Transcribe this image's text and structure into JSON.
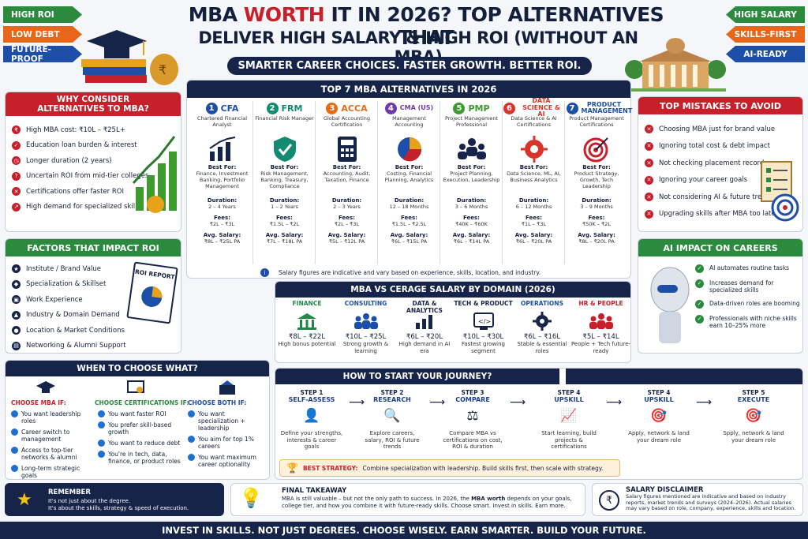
{
  "tags_left": [
    "HIGH ROI",
    "LOW DEBT",
    "FUTURE-PROOF"
  ],
  "tags_right": [
    "HIGH SALARY",
    "SKILLS-FIRST",
    "AI-READY"
  ],
  "title": {
    "part1": "MBA ",
    "highlight": "WORTH",
    "part2": " IT IN 2026? TOP ALTERNATIVES THAT",
    "line2": "DELIVER HIGH SALARY & HIGH ROI (WITHOUT AN MBA)"
  },
  "tagline": "SMARTER CAREER CHOICES. FASTER GROWTH. BETTER ROI.",
  "why": {
    "title": "WHY CONSIDER ALTERNATIVES TO MBA?",
    "items": [
      "High MBA cost: ₹10L – ₹25L+",
      "Education loan burden & interest",
      "Longer duration (2 years)",
      "Uncertain ROI from mid-tier colleges",
      "Certifications offer faster ROI",
      "High demand for specialized skills"
    ]
  },
  "factors": {
    "title": "FACTORS THAT IMPACT ROI",
    "items": [
      "Institute / Brand Value",
      "Specialization & Skillset",
      "Work Experience",
      "Industry & Domain Demand",
      "Location & Market Conditions",
      "Networking & Alumni Support"
    ],
    "report_label": "ROI REPORT"
  },
  "top7": {
    "title": "TOP 7 MBA ALTERNATIVES IN 2026",
    "labels": {
      "best": "Best For:",
      "duration": "Duration:",
      "fees": "Fees:",
      "salary": "Avg. Salary:"
    },
    "cards": [
      {
        "n": "1",
        "name": "CFA",
        "sub": "Chartered Financial Analyst",
        "best": "Finance, Investment Banking, Portfolio Management",
        "duration": "2 – 4 Years",
        "fees": "₹2L – ₹3L",
        "salary": "₹8L – ₹25L PA",
        "color": "#1d4fa8"
      },
      {
        "n": "2",
        "name": "FRM",
        "sub": "Financial Risk Manager",
        "best": "Risk Management, Banking, Treasury, Compliance",
        "duration": "1 – 2 Years",
        "fees": "₹1.5L – ₹2L",
        "salary": "₹7L – ₹18L PA",
        "color": "#138a72"
      },
      {
        "n": "3",
        "name": "ACCA",
        "sub": "Global Accounting Certification",
        "best": "Accounting, Audit, Taxation, Finance",
        "duration": "2 – 3 Years",
        "fees": "₹2L – ₹3L",
        "salary": "₹5L – ₹12L PA",
        "color": "#e86a12"
      },
      {
        "n": "4",
        "name": "CMA (US)",
        "sub": "Management Accounting",
        "best": "Costing, Financial Planning, Analytics",
        "duration": "12 – 18 Months",
        "fees": "₹1.5L – ₹2.5L",
        "salary": "₹6L – ₹15L PA",
        "color": "#6f3aa8"
      },
      {
        "n": "5",
        "name": "PMP",
        "sub": "Project Management Professional",
        "best": "Project Planning, Execution, Leadership",
        "duration": "3 – 6 Months",
        "fees": "₹40K – ₹60K",
        "salary": "₹6L – ₹14L PA",
        "color": "#3c9a2e"
      },
      {
        "n": "6",
        "name": "DATA SCIENCE & AI",
        "sub": "Data Science & AI Certifications",
        "best": "Data Science, ML, AI, Business Analytics",
        "duration": "6 – 12 Months",
        "fees": "₹1L – ₹3L",
        "salary": "₹6L – ₹20L PA",
        "color": "#d8352a"
      },
      {
        "n": "7",
        "name": "PRODUCT MANAGEMENT",
        "sub": "Product Management Certifications",
        "best": "Product Strategy, Growth, Tech Leadership",
        "duration": "3 – 9 Months",
        "fees": "₹50K – ₹2L",
        "salary": "₹8L – ₹20L PA",
        "color": "#1d4fa8"
      }
    ],
    "note": "Salary figures are indicative and vary based on experience, skills, location, and industry."
  },
  "mistakes": {
    "title": "TOP MISTAKES TO AVOID",
    "items": [
      "Choosing MBA just for brand value",
      "Ignoring total cost & debt impact",
      "Not checking placement records",
      "Ignoring your career goals",
      "Not considering AI & future trends",
      "Upgrading skills after MBA too late"
    ]
  },
  "ai": {
    "title": "AI IMPACT ON CAREERS",
    "items": [
      "AI automates routine tasks",
      "Increases demand for specialized skills",
      "Data-driven roles are booming",
      "Professionals with niche skills earn 10–25% more"
    ]
  },
  "domains": {
    "title": "MBA VS CERAGE SALARY BY DOMAIN (2026)",
    "items": [
      {
        "name": "FINANCE",
        "value": "₹8L – ₹22L",
        "desc": "High bonus potential",
        "color": "#1d8a4a"
      },
      {
        "name": "CONSULTING",
        "value": "₹10L – ₹25L",
        "desc": "Strong growth & learning",
        "color": "#1d4fa8"
      },
      {
        "name": "DATA & ANALYTICS",
        "value": "₹6L – ₹20L",
        "desc": "High demand in AI era",
        "color": "#16244a"
      },
      {
        "name": "TECH & PRODUCT",
        "value": "₹10L – ₹30L",
        "desc": "Fastest growing segment",
        "color": "#16244a"
      },
      {
        "name": "OPERATIONS",
        "value": "₹6L – ₹16L",
        "desc": "Stable & essential roles",
        "color": "#1d4fa8"
      },
      {
        "name": "HR & PEOPLE",
        "value": "₹5L – ₹14L",
        "desc": "People + Tech future-ready",
        "color": "#c8202a"
      }
    ]
  },
  "choose": {
    "title": "WHEN TO CHOOSE WHAT?",
    "mba": {
      "head": "CHOOSE MBA IF:",
      "items": [
        "You want leadership roles",
        "Career switch to management",
        "Access to top-tier networks & alumni",
        "Long-term strategic goals"
      ]
    },
    "cert": {
      "head": "CHOOSE CERTIFICATIONS IF:",
      "items": [
        "You want faster ROI",
        "You prefer skill-based growth",
        "You want to reduce debt",
        "You're in tech, data, finance, or product roles"
      ]
    },
    "both": {
      "head": "CHOOSE BOTH IF:",
      "items": [
        "You want specialization + leadership",
        "You aim for top 1% careers",
        "You want maximum career optionality"
      ]
    }
  },
  "journey": {
    "title": "HOW TO START YOUR JOURNEY?",
    "steps": [
      {
        "step": "STEP 1",
        "name": "SELF-ASSESS",
        "desc": "Define your strengths, interests & career goals"
      },
      {
        "step": "STEP 2",
        "name": "RESEARCH",
        "desc": "Explore careers, salary, ROI & future trends"
      },
      {
        "step": "STEP 3",
        "name": "COMPARE",
        "desc": "Compare MBA vs certifications on cost, ROI & duration"
      },
      {
        "step": "STEP 4",
        "name": "UPSKILL",
        "desc": "Start learning, build projects & certifications"
      },
      {
        "step": "STEP 4",
        "name": "UPSKILL",
        "desc": "Apply, network & land your dream role"
      },
      {
        "step": "STEP 5",
        "name": "EXECUTE",
        "desc": "Spply, network & land your dream role"
      }
    ],
    "strategy_label": "BEST STRATEGY:",
    "strategy": "Combine specialization with leadership. Build skills first, then scale with strategy."
  },
  "remember": {
    "title": "REMEMBER",
    "line1": "It's not just about the degree.",
    "line2": "It's about the skills, strategy & speed of execution."
  },
  "takeaway": {
    "title": "FINAL TAKEAWAY",
    "text1": "MBA is still valuable – but not the only path to success. In 2026, the ",
    "bold": "MBA worth",
    "text2": " depends on your goals, college tier, and how you combine it with future-ready skills. Choose smart. Invest in skills. Earn more."
  },
  "disclaimer": {
    "title": "SALARY DISCLAIMER",
    "text": "Salary figures mentioned are indicative and based on industry reports, market trends and surveys (2024–2026). Actual salaries may vary based on role, company, experience, skills and location."
  },
  "footer": "INVEST IN SKILLS. NOT JUST DEGREES. CHOOSE WISELY. EARN SMARTER. BUILD YOUR FUTURE."
}
